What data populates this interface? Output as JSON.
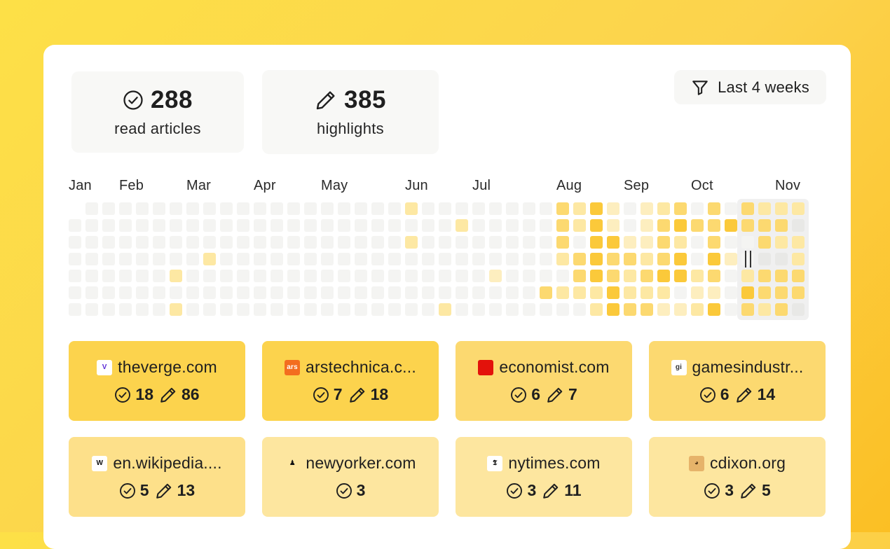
{
  "stats": {
    "read": {
      "value": "288",
      "label": "read articles"
    },
    "highlights": {
      "value": "385",
      "label": "highlights"
    }
  },
  "filter": {
    "label": "Last 4 weeks",
    "icon": "funnel-icon"
  },
  "months": [
    "Jan",
    "Feb",
    "Mar",
    "Apr",
    "May",
    "Jun",
    "Jul",
    "Aug",
    "Sep",
    "Oct",
    "Nov"
  ],
  "colors": {
    "empty": "#f4f4f2",
    "level1": "#fdeebf",
    "level2": "#fde8a3",
    "level3": "#fcd970",
    "level4": "#fbc93a",
    "selection": "#d9d9d9"
  },
  "sites": [
    {
      "domain": "theverge.com",
      "read": "18",
      "highlights": "86",
      "icon": "verge-icon"
    },
    {
      "domain": "arstechnica.c...",
      "read": "7",
      "highlights": "18",
      "icon": "ars-icon"
    },
    {
      "domain": "economist.com",
      "read": "6",
      "highlights": "7",
      "icon": "economist-icon"
    },
    {
      "domain": "gamesindustr...",
      "read": "6",
      "highlights": "14",
      "icon": "gamesindustry-icon"
    },
    {
      "domain": "en.wikipedia....",
      "read": "5",
      "highlights": "13",
      "icon": "wikipedia-icon"
    },
    {
      "domain": "newyorker.com",
      "read": "3",
      "highlights": "",
      "icon": "newyorker-icon"
    },
    {
      "domain": "nytimes.com",
      "read": "3",
      "highlights": "11",
      "icon": "nytimes-icon"
    },
    {
      "domain": "cdixon.org",
      "read": "3",
      "highlights": "5",
      "icon": "cdixon-icon"
    }
  ]
}
